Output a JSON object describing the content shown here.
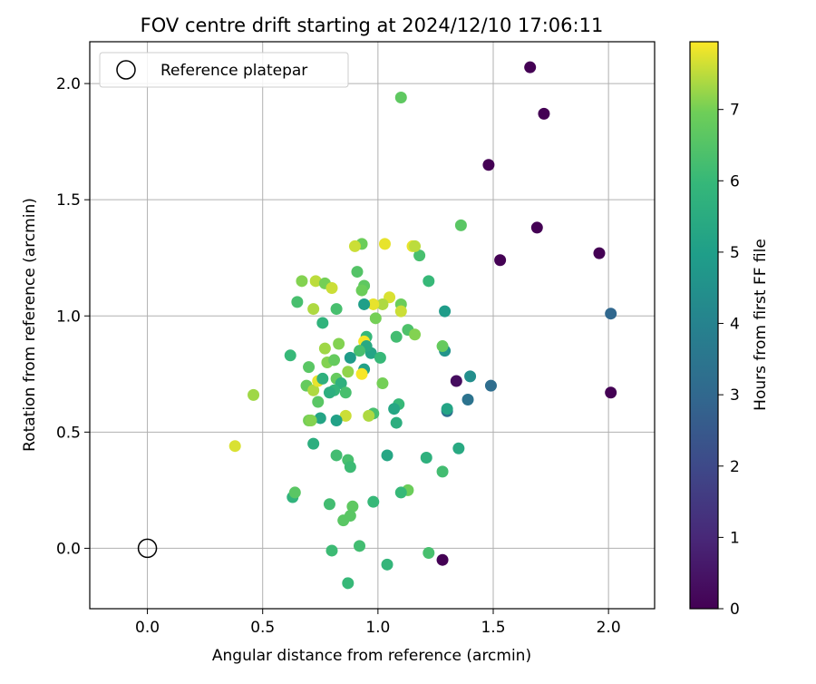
{
  "chart_data": {
    "type": "scatter",
    "title": "FOV centre drift starting at 2024/12/10 17:06:11",
    "xlabel": "Angular distance from reference (arcmin)",
    "ylabel": "Rotation from reference (arcmin)",
    "xlim": [
      -0.25,
      2.2
    ],
    "ylim": [
      -0.26,
      2.18
    ],
    "xticks": [
      "0.0",
      "0.5",
      "1.0",
      "1.5",
      "2.0"
    ],
    "yticks": [
      "0.0",
      "0.5",
      "1.0",
      "1.5",
      "2.0"
    ],
    "grid": true,
    "legend": {
      "position": "top-left",
      "entries": [
        {
          "label": "Reference platepar",
          "marker": "open-circle"
        }
      ]
    },
    "reference_point": {
      "x": 0.0,
      "y": 0.0
    },
    "colorbar": {
      "label": "Hours from first FF file",
      "range": [
        0,
        7.95
      ],
      "ticks": [
        "0",
        "1",
        "2",
        "3",
        "4",
        "5",
        "6",
        "7"
      ],
      "colormap": "viridis"
    },
    "points": [
      {
        "x": 1.66,
        "y": 2.07,
        "h": 0.0
      },
      {
        "x": 1.72,
        "y": 1.87,
        "h": 0.0
      },
      {
        "x": 1.48,
        "y": 1.65,
        "h": 0.0
      },
      {
        "x": 1.69,
        "y": 1.38,
        "h": 0.0
      },
      {
        "x": 1.96,
        "y": 1.27,
        "h": 0.0
      },
      {
        "x": 1.53,
        "y": 1.24,
        "h": 0.0
      },
      {
        "x": 2.01,
        "y": 0.67,
        "h": 0.0
      },
      {
        "x": 1.34,
        "y": 0.72,
        "h": 0.3
      },
      {
        "x": 1.28,
        "y": -0.05,
        "h": 0.0
      },
      {
        "x": 2.01,
        "y": 1.01,
        "h": 3.0
      },
      {
        "x": 1.49,
        "y": 0.7,
        "h": 3.2
      },
      {
        "x": 1.39,
        "y": 0.64,
        "h": 3.4
      },
      {
        "x": 1.3,
        "y": 0.59,
        "h": 3.3
      },
      {
        "x": 1.4,
        "y": 0.74,
        "h": 4.4
      },
      {
        "x": 1.29,
        "y": 0.85,
        "h": 4.6
      },
      {
        "x": 1.29,
        "y": 1.02,
        "h": 4.9
      },
      {
        "x": 1.35,
        "y": 0.43,
        "h": 5.4
      },
      {
        "x": 1.3,
        "y": 0.6,
        "h": 5.2
      },
      {
        "x": 1.28,
        "y": 0.33,
        "h": 6.2
      },
      {
        "x": 1.28,
        "y": 0.87,
        "h": 6.8
      },
      {
        "x": 1.22,
        "y": 1.15,
        "h": 6.0
      },
      {
        "x": 1.18,
        "y": 1.26,
        "h": 6.3
      },
      {
        "x": 1.36,
        "y": 1.39,
        "h": 6.6
      },
      {
        "x": 1.1,
        "y": 1.94,
        "h": 6.7
      },
      {
        "x": 1.22,
        "y": -0.02,
        "h": 6.3
      },
      {
        "x": 1.21,
        "y": 0.39,
        "h": 5.7
      },
      {
        "x": 1.13,
        "y": 0.25,
        "h": 6.9
      },
      {
        "x": 1.1,
        "y": 0.24,
        "h": 6.0
      },
      {
        "x": 1.04,
        "y": 0.4,
        "h": 5.3
      },
      {
        "x": 1.04,
        "y": -0.07,
        "h": 5.9
      },
      {
        "x": 1.09,
        "y": 0.62,
        "h": 6.0
      },
      {
        "x": 1.07,
        "y": 0.6,
        "h": 5.3
      },
      {
        "x": 1.08,
        "y": 0.54,
        "h": 5.6
      },
      {
        "x": 1.08,
        "y": 0.91,
        "h": 6.2
      },
      {
        "x": 1.13,
        "y": 0.94,
        "h": 6.4
      },
      {
        "x": 1.16,
        "y": 0.92,
        "h": 7.1
      },
      {
        "x": 1.1,
        "y": 1.05,
        "h": 6.9
      },
      {
        "x": 1.1,
        "y": 1.02,
        "h": 7.6
      },
      {
        "x": 1.05,
        "y": 1.08,
        "h": 7.7
      },
      {
        "x": 1.02,
        "y": 1.05,
        "h": 7.4
      },
      {
        "x": 0.98,
        "y": 1.05,
        "h": 7.8
      },
      {
        "x": 1.03,
        "y": 1.31,
        "h": 7.8
      },
      {
        "x": 1.15,
        "y": 1.3,
        "h": 7.8
      },
      {
        "x": 1.16,
        "y": 1.3,
        "h": 7.5
      },
      {
        "x": 0.93,
        "y": 1.31,
        "h": 6.9
      },
      {
        "x": 0.9,
        "y": 1.3,
        "h": 7.6
      },
      {
        "x": 0.91,
        "y": 1.19,
        "h": 6.5
      },
      {
        "x": 0.94,
        "y": 1.13,
        "h": 6.7
      },
      {
        "x": 0.93,
        "y": 1.11,
        "h": 6.9
      },
      {
        "x": 0.94,
        "y": 1.05,
        "h": 5.0
      },
      {
        "x": 0.99,
        "y": 0.99,
        "h": 7.0
      },
      {
        "x": 0.95,
        "y": 0.91,
        "h": 6.0
      },
      {
        "x": 0.94,
        "y": 0.89,
        "h": 7.9
      },
      {
        "x": 0.97,
        "y": 0.84,
        "h": 5.2
      },
      {
        "x": 0.95,
        "y": 0.87,
        "h": 5.4
      },
      {
        "x": 0.92,
        "y": 0.85,
        "h": 6.3
      },
      {
        "x": 0.88,
        "y": 0.82,
        "h": 4.9
      },
      {
        "x": 1.01,
        "y": 0.82,
        "h": 6.0
      },
      {
        "x": 0.94,
        "y": 0.77,
        "h": 5.1
      },
      {
        "x": 0.93,
        "y": 0.75,
        "h": 7.9
      },
      {
        "x": 0.87,
        "y": 0.76,
        "h": 7.2
      },
      {
        "x": 0.82,
        "y": 0.73,
        "h": 6.8
      },
      {
        "x": 0.84,
        "y": 0.71,
        "h": 5.7
      },
      {
        "x": 0.81,
        "y": 0.68,
        "h": 5.9
      },
      {
        "x": 0.79,
        "y": 0.67,
        "h": 5.6
      },
      {
        "x": 0.86,
        "y": 0.67,
        "h": 6.3
      },
      {
        "x": 1.02,
        "y": 0.71,
        "h": 7.0
      },
      {
        "x": 0.98,
        "y": 0.58,
        "h": 6.3
      },
      {
        "x": 0.96,
        "y": 0.57,
        "h": 7.4
      },
      {
        "x": 0.86,
        "y": 0.57,
        "h": 7.6
      },
      {
        "x": 0.82,
        "y": 0.55,
        "h": 5.1
      },
      {
        "x": 0.72,
        "y": 0.45,
        "h": 5.6
      },
      {
        "x": 0.82,
        "y": 0.4,
        "h": 6.2
      },
      {
        "x": 0.87,
        "y": 0.38,
        "h": 6.3
      },
      {
        "x": 0.88,
        "y": 0.35,
        "h": 6.1
      },
      {
        "x": 0.98,
        "y": 0.2,
        "h": 6.0
      },
      {
        "x": 0.79,
        "y": 0.19,
        "h": 6.2
      },
      {
        "x": 0.89,
        "y": 0.18,
        "h": 6.7
      },
      {
        "x": 0.88,
        "y": 0.14,
        "h": 6.6
      },
      {
        "x": 0.85,
        "y": 0.12,
        "h": 6.6
      },
      {
        "x": 0.8,
        "y": -0.01,
        "h": 6.1
      },
      {
        "x": 0.92,
        "y": 0.01,
        "h": 6.2
      },
      {
        "x": 0.87,
        "y": -0.15,
        "h": 6.0
      },
      {
        "x": 0.63,
        "y": 0.22,
        "h": 5.8
      },
      {
        "x": 0.64,
        "y": 0.24,
        "h": 6.6
      },
      {
        "x": 0.75,
        "y": 0.56,
        "h": 5.2
      },
      {
        "x": 0.74,
        "y": 0.63,
        "h": 6.6
      },
      {
        "x": 0.7,
        "y": 0.55,
        "h": 7.0
      },
      {
        "x": 0.71,
        "y": 0.55,
        "h": 7.1
      },
      {
        "x": 0.69,
        "y": 0.7,
        "h": 6.8
      },
      {
        "x": 0.72,
        "y": 0.68,
        "h": 7.4
      },
      {
        "x": 0.74,
        "y": 0.72,
        "h": 7.8
      },
      {
        "x": 0.76,
        "y": 0.73,
        "h": 5.7
      },
      {
        "x": 0.7,
        "y": 0.78,
        "h": 6.6
      },
      {
        "x": 0.78,
        "y": 0.8,
        "h": 7.1
      },
      {
        "x": 0.81,
        "y": 0.81,
        "h": 6.8
      },
      {
        "x": 0.77,
        "y": 0.86,
        "h": 7.3
      },
      {
        "x": 0.83,
        "y": 0.88,
        "h": 7.1
      },
      {
        "x": 0.76,
        "y": 0.97,
        "h": 5.8
      },
      {
        "x": 0.82,
        "y": 1.03,
        "h": 6.3
      },
      {
        "x": 0.72,
        "y": 1.03,
        "h": 7.4
      },
      {
        "x": 0.65,
        "y": 1.06,
        "h": 6.3
      },
      {
        "x": 0.67,
        "y": 1.15,
        "h": 7.1
      },
      {
        "x": 0.73,
        "y": 1.15,
        "h": 7.5
      },
      {
        "x": 0.77,
        "y": 1.14,
        "h": 7.0
      },
      {
        "x": 0.8,
        "y": 1.12,
        "h": 7.6
      },
      {
        "x": 0.62,
        "y": 0.83,
        "h": 6.0
      },
      {
        "x": 0.46,
        "y": 0.66,
        "h": 7.3
      },
      {
        "x": 0.38,
        "y": 0.44,
        "h": 7.7
      }
    ]
  }
}
